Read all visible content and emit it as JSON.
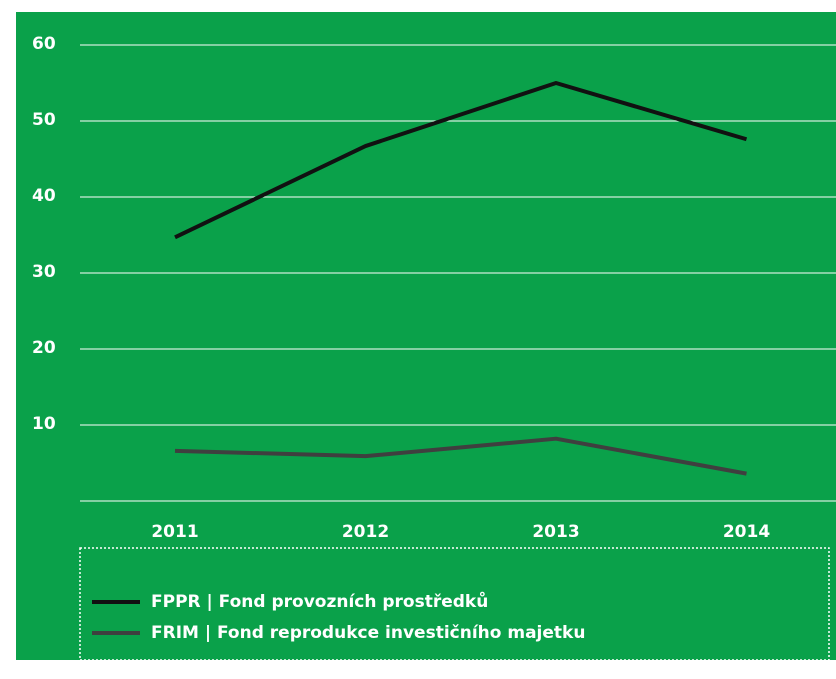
{
  "chart_data": {
    "type": "line",
    "categories": [
      "2011",
      "2012",
      "2013",
      "2014"
    ],
    "series": [
      {
        "name": "FPPR | Fond provozních prostředků",
        "color": "#111111",
        "values": [
          34.7,
          46.7,
          55,
          47.6
        ]
      },
      {
        "name": "FRIM | Fond reprodukce investičního majetku",
        "color": "#3f3f3f",
        "values": [
          6.6,
          5.9,
          8.2,
          3.6
        ]
      }
    ],
    "ylim": [
      0,
      60
    ],
    "yticks": [
      10,
      20,
      30,
      40,
      50,
      60
    ],
    "grid": true,
    "background": "#0aa14a"
  }
}
